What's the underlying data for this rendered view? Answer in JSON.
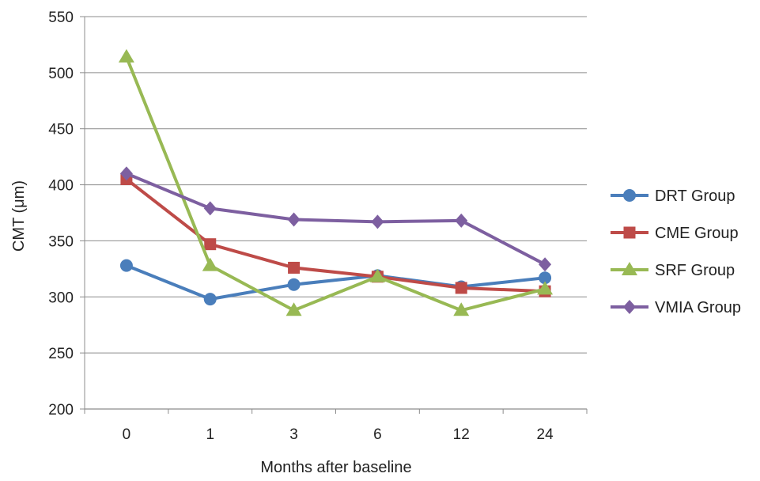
{
  "chart_data": {
    "type": "line",
    "title": "",
    "xlabel": "Months after baseline",
    "ylabel": "CMT (μm)",
    "categories": [
      "0",
      "1",
      "3",
      "6",
      "12",
      "24"
    ],
    "ylim": [
      200,
      550
    ],
    "yticks": [
      200,
      250,
      300,
      350,
      400,
      450,
      500,
      550
    ],
    "grid": "horizontal",
    "legend": "right",
    "series": [
      {
        "name": "DRT Group",
        "color": "#4a7ebb",
        "marker": "circle",
        "values": [
          328,
          298,
          311,
          319,
          309,
          317
        ]
      },
      {
        "name": "CME Group",
        "color": "#be4b48",
        "marker": "square",
        "values": [
          405,
          347,
          326,
          318,
          308,
          305
        ]
      },
      {
        "name": "SRF Group",
        "color": "#98b954",
        "marker": "triangle",
        "values": [
          514,
          328,
          288,
          318,
          288,
          307
        ]
      },
      {
        "name": "VMIA Group",
        "color": "#7d5fa0",
        "marker": "diamond",
        "values": [
          410,
          379,
          369,
          367,
          368,
          329
        ]
      }
    ]
  }
}
